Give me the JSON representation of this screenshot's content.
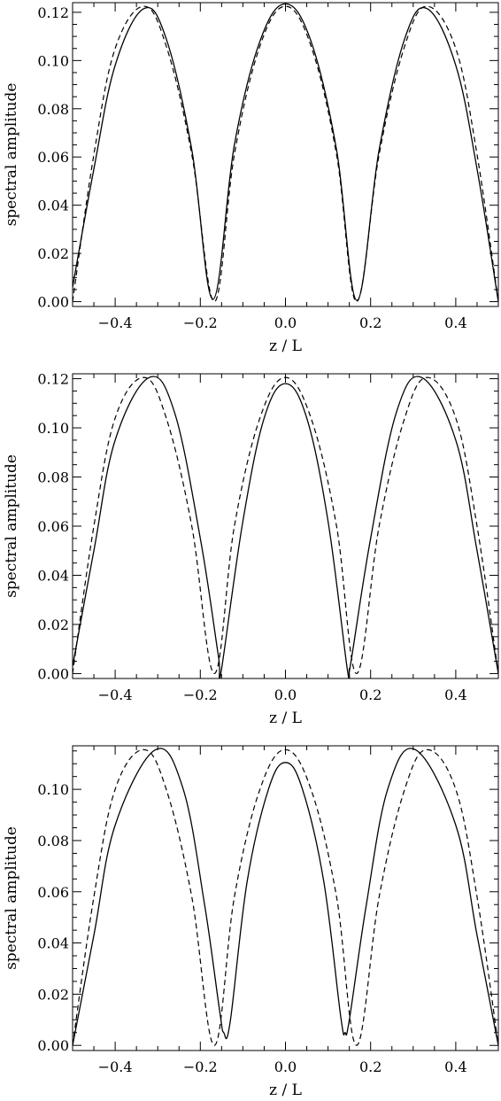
{
  "chart_data": [
    {
      "type": "line",
      "xlabel": "z / L",
      "ylabel": "spectral amplitude",
      "xlim": [
        -0.5,
        0.5
      ],
      "ylim": [
        -0.002,
        0.124
      ],
      "xticks": [
        -0.4,
        -0.2,
        0.0,
        0.2,
        0.4
      ],
      "xtick_labels": [
        "−0.4",
        "−0.2",
        "0.0",
        "0.2",
        "0.4"
      ],
      "yticks": [
        0.0,
        0.02,
        0.04,
        0.06,
        0.08,
        0.1,
        0.12
      ],
      "ytick_labels": [
        "0.00",
        "0.02",
        "0.04",
        "0.06",
        "0.08",
        "0.10",
        "0.12"
      ],
      "grid": false,
      "series": [
        {
          "style": "solid",
          "x": [
            -0.5,
            -0.45,
            -0.4,
            -0.333,
            -0.28,
            -0.22,
            -0.17,
            -0.12,
            -0.06,
            0.0,
            0.06,
            0.12,
            0.168,
            0.22,
            0.28,
            0.333,
            0.4,
            0.45,
            0.5
          ],
          "y": [
            0.006,
            0.055,
            0.098,
            0.1215,
            0.109,
            0.063,
            0.001,
            0.065,
            0.108,
            0.1235,
            0.108,
            0.063,
            0.0005,
            0.063,
            0.109,
            0.1215,
            0.098,
            0.055,
            0.0
          ]
        },
        {
          "style": "dashed",
          "x": [
            -0.5,
            -0.45,
            -0.4,
            -0.333,
            -0.28,
            -0.22,
            -0.167,
            -0.12,
            -0.06,
            0.0,
            0.06,
            0.12,
            0.167,
            0.22,
            0.28,
            0.333,
            0.4,
            0.45,
            0.5
          ],
          "y": [
            0.0,
            0.061,
            0.105,
            0.1225,
            0.106,
            0.061,
            0.0,
            0.061,
            0.106,
            0.1225,
            0.106,
            0.061,
            0.0,
            0.061,
            0.106,
            0.1225,
            0.105,
            0.061,
            0.0
          ]
        }
      ]
    },
    {
      "type": "line",
      "xlabel": "z / L",
      "ylabel": "spectral amplitude",
      "xlim": [
        -0.5,
        0.5
      ],
      "ylim": [
        -0.002,
        0.122
      ],
      "xticks": [
        -0.4,
        -0.2,
        0.0,
        0.2,
        0.4
      ],
      "xtick_labels": [
        "−0.4",
        "−0.2",
        "0.0",
        "0.2",
        "0.4"
      ],
      "yticks": [
        0.0,
        0.02,
        0.04,
        0.06,
        0.08,
        0.1,
        0.12
      ],
      "ytick_labels": [
        "0.00",
        "0.02",
        "0.04",
        "0.06",
        "0.08",
        "0.10",
        "0.12"
      ],
      "grid": false,
      "series": [
        {
          "style": "solid",
          "x": [
            -0.5,
            -0.45,
            -0.4,
            -0.32,
            -0.26,
            -0.2,
            -0.16,
            -0.155,
            -0.15,
            -0.1,
            -0.05,
            0.0,
            0.05,
            0.1,
            0.145,
            0.15,
            0.155,
            0.2,
            0.26,
            0.32,
            0.4,
            0.45,
            0.5
          ],
          "y": [
            0.003,
            0.05,
            0.095,
            0.1205,
            0.106,
            0.055,
            0.01,
            0.003,
            0.002,
            0.062,
            0.104,
            0.118,
            0.104,
            0.062,
            0.002,
            0.002,
            0.006,
            0.055,
            0.106,
            0.1205,
            0.095,
            0.05,
            0.0
          ]
        },
        {
          "style": "dashed",
          "x": [
            -0.5,
            -0.45,
            -0.4,
            -0.333,
            -0.28,
            -0.22,
            -0.167,
            -0.12,
            -0.06,
            0.0,
            0.06,
            0.12,
            0.167,
            0.22,
            0.28,
            0.333,
            0.4,
            0.45,
            0.5
          ],
          "y": [
            0.0,
            0.06,
            0.104,
            0.1205,
            0.104,
            0.06,
            0.0,
            0.06,
            0.104,
            0.1205,
            0.104,
            0.06,
            0.0,
            0.06,
            0.104,
            0.1205,
            0.104,
            0.06,
            0.0
          ]
        }
      ]
    },
    {
      "type": "line",
      "xlabel": "z / L",
      "ylabel": "spectral amplitude",
      "xlim": [
        -0.5,
        0.5
      ],
      "ylim": [
        -0.002,
        0.117
      ],
      "xticks": [
        -0.4,
        -0.2,
        0.0,
        0.2,
        0.4
      ],
      "xtick_labels": [
        "−0.4",
        "−0.2",
        "0.0",
        "0.2",
        "0.4"
      ],
      "yticks": [
        0.0,
        0.02,
        0.04,
        0.06,
        0.08,
        0.1
      ],
      "ytick_labels": [
        "0.00",
        "0.02",
        "0.04",
        "0.06",
        "0.08",
        "0.10"
      ],
      "grid": false,
      "series": [
        {
          "style": "solid",
          "x": [
            -0.5,
            -0.45,
            -0.4,
            -0.305,
            -0.24,
            -0.19,
            -0.155,
            -0.145,
            -0.13,
            -0.09,
            -0.04,
            0.0,
            0.04,
            0.09,
            0.13,
            0.14,
            0.15,
            0.19,
            0.24,
            0.305,
            0.4,
            0.45,
            0.5
          ],
          "y": [
            0.0,
            0.043,
            0.086,
            0.1155,
            0.1,
            0.055,
            0.014,
            0.005,
            0.009,
            0.064,
            0.1,
            0.1105,
            0.1,
            0.064,
            0.011,
            0.005,
            0.01,
            0.055,
            0.1,
            0.1155,
            0.086,
            0.043,
            0.0
          ]
        },
        {
          "style": "dashed",
          "x": [
            -0.5,
            -0.45,
            -0.4,
            -0.333,
            -0.28,
            -0.22,
            -0.167,
            -0.12,
            -0.06,
            0.0,
            0.06,
            0.12,
            0.167,
            0.22,
            0.28,
            0.333,
            0.4,
            0.45,
            0.5
          ],
          "y": [
            0.0,
            0.058,
            0.1,
            0.1155,
            0.1,
            0.058,
            0.0,
            0.058,
            0.1,
            0.1155,
            0.1,
            0.058,
            0.0,
            0.058,
            0.1,
            0.1155,
            0.1,
            0.058,
            0.0
          ]
        }
      ]
    }
  ]
}
